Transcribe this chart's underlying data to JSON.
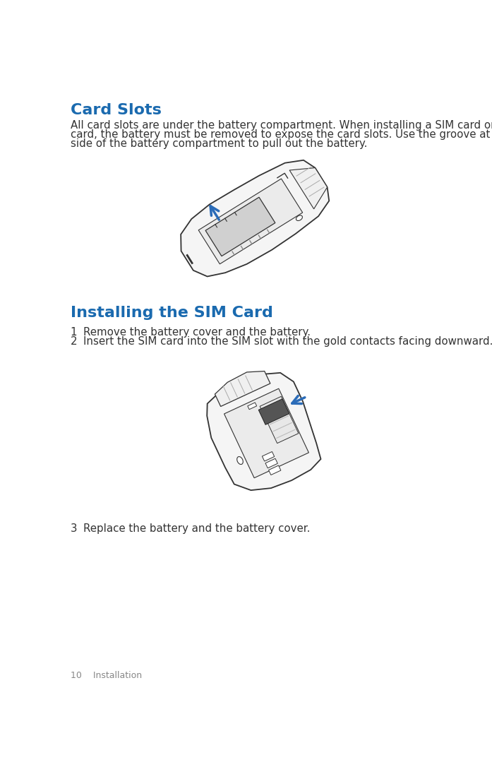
{
  "title": "Card Slots",
  "title_color": "#1a6aaf",
  "title_fontsize": 16,
  "body_text_1_line1": "All card slots are under the battery compartment. When installing a SIM card or microSD",
  "body_text_1_line2": "card, the battery must be removed to expose the card slots. Use the groove at the left",
  "body_text_1_line3": "side of the battery compartment to pull out the battery.",
  "section2_title": "Installing the SIM Card",
  "section2_color": "#1a6aaf",
  "section2_fontsize": 16,
  "step1": "Remove the battery cover and the battery.",
  "step2": "Insert the SIM card into the SIM slot with the gold contacts facing downward.",
  "step3": "Replace the battery and the battery cover.",
  "footer": "10    Installation",
  "bg_color": "#ffffff",
  "text_color": "#333333",
  "body_fontsize": 10.8,
  "step_fontsize": 10.8,
  "footer_fontsize": 9,
  "arrow_color": "#2b6cb8",
  "edge_color": "#333333",
  "fill_light": "#f5f5f5",
  "fill_mid": "#e0e0e0",
  "fill_dark": "#c8c8c8",
  "fill_battery": "#d0d0d0",
  "fill_sim": "#444444"
}
